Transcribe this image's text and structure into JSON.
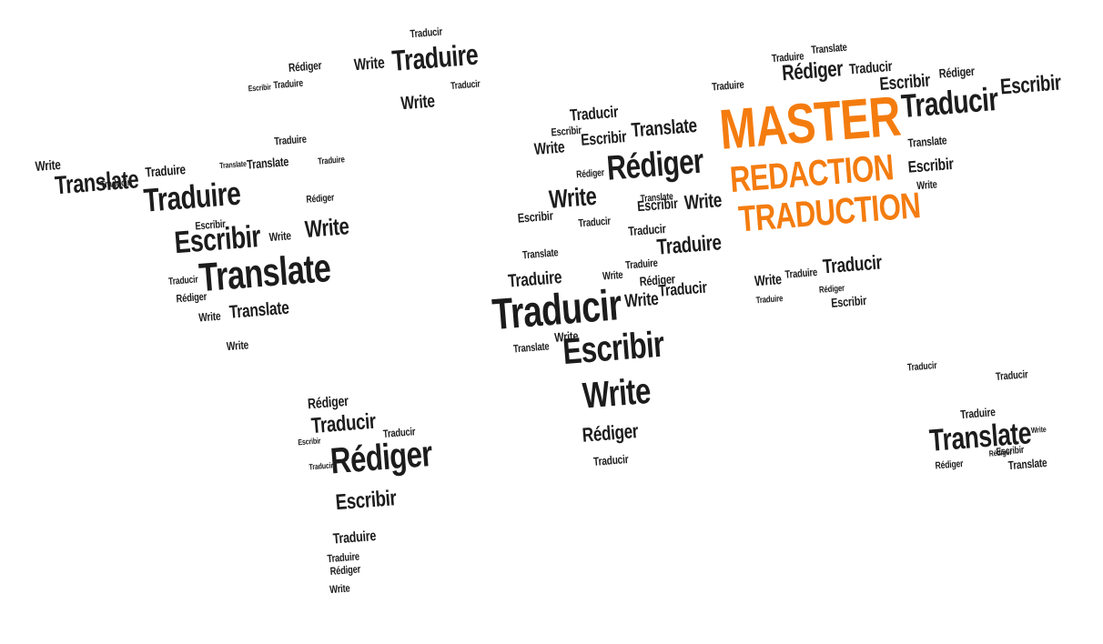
{
  "colors": {
    "text": "#1c1c1c",
    "accent": "#f47c0f",
    "background": "#ffffff"
  },
  "headline": {
    "line1": "MASTER",
    "line2": "REDACTION",
    "line3": "TRADUCTION"
  },
  "continents": {
    "north_america": [
      "Write",
      "Translate",
      "Traduire",
      "Traduire",
      "Escribir",
      "Write",
      "Write",
      "Translate",
      "Translate",
      "Rédiger",
      "Traducir",
      "Write",
      "Translate",
      "Traduire",
      "Rédiger",
      "Escribir",
      "Traducir",
      "Translate",
      "Write",
      "Traduire"
    ],
    "greenland": [
      "Rédiger",
      "Write",
      "Traduire",
      "Write",
      "Traduire",
      "Traducir",
      "Traducir",
      "Escribir"
    ],
    "south_america": [
      "Rédiger",
      "Traducir",
      "Traducir",
      "Rédiger",
      "Escribir",
      "Traduire",
      "Traduire",
      "Rédiger",
      "Write",
      "Escribir",
      "Traducir"
    ],
    "europe": [
      "Traducir",
      "Escribir",
      "Write",
      "Escribir",
      "Translate",
      "Rédiger",
      "Write",
      "Escribir",
      "Translate",
      "Write",
      "Escribir",
      "Traducir",
      "Rédiger",
      "Translate",
      "Traduire"
    ],
    "africa": [
      "Traducir",
      "Traduire",
      "Write",
      "Escribir",
      "Write",
      "Rédiger",
      "Traducir",
      "Traduire",
      "Write",
      "Translate",
      "Traduire",
      "Rédiger",
      "Write",
      "Traducir",
      "Traducir"
    ],
    "asia": [
      "Traduire",
      "Rédiger",
      "Translate",
      "Traducir",
      "Escribir",
      "Rédiger",
      "Traducir",
      "Escribir",
      "Translate",
      "Escribir",
      "Write",
      "Write",
      "Traduire",
      "Traducir",
      "Rédiger",
      "Escribir",
      "Traduire"
    ],
    "oceania": [
      "Traducir",
      "Traducir",
      "Traduire",
      "Translate",
      "Rédiger",
      "Escribir",
      "Translate",
      "Write",
      "Rédiger"
    ]
  }
}
